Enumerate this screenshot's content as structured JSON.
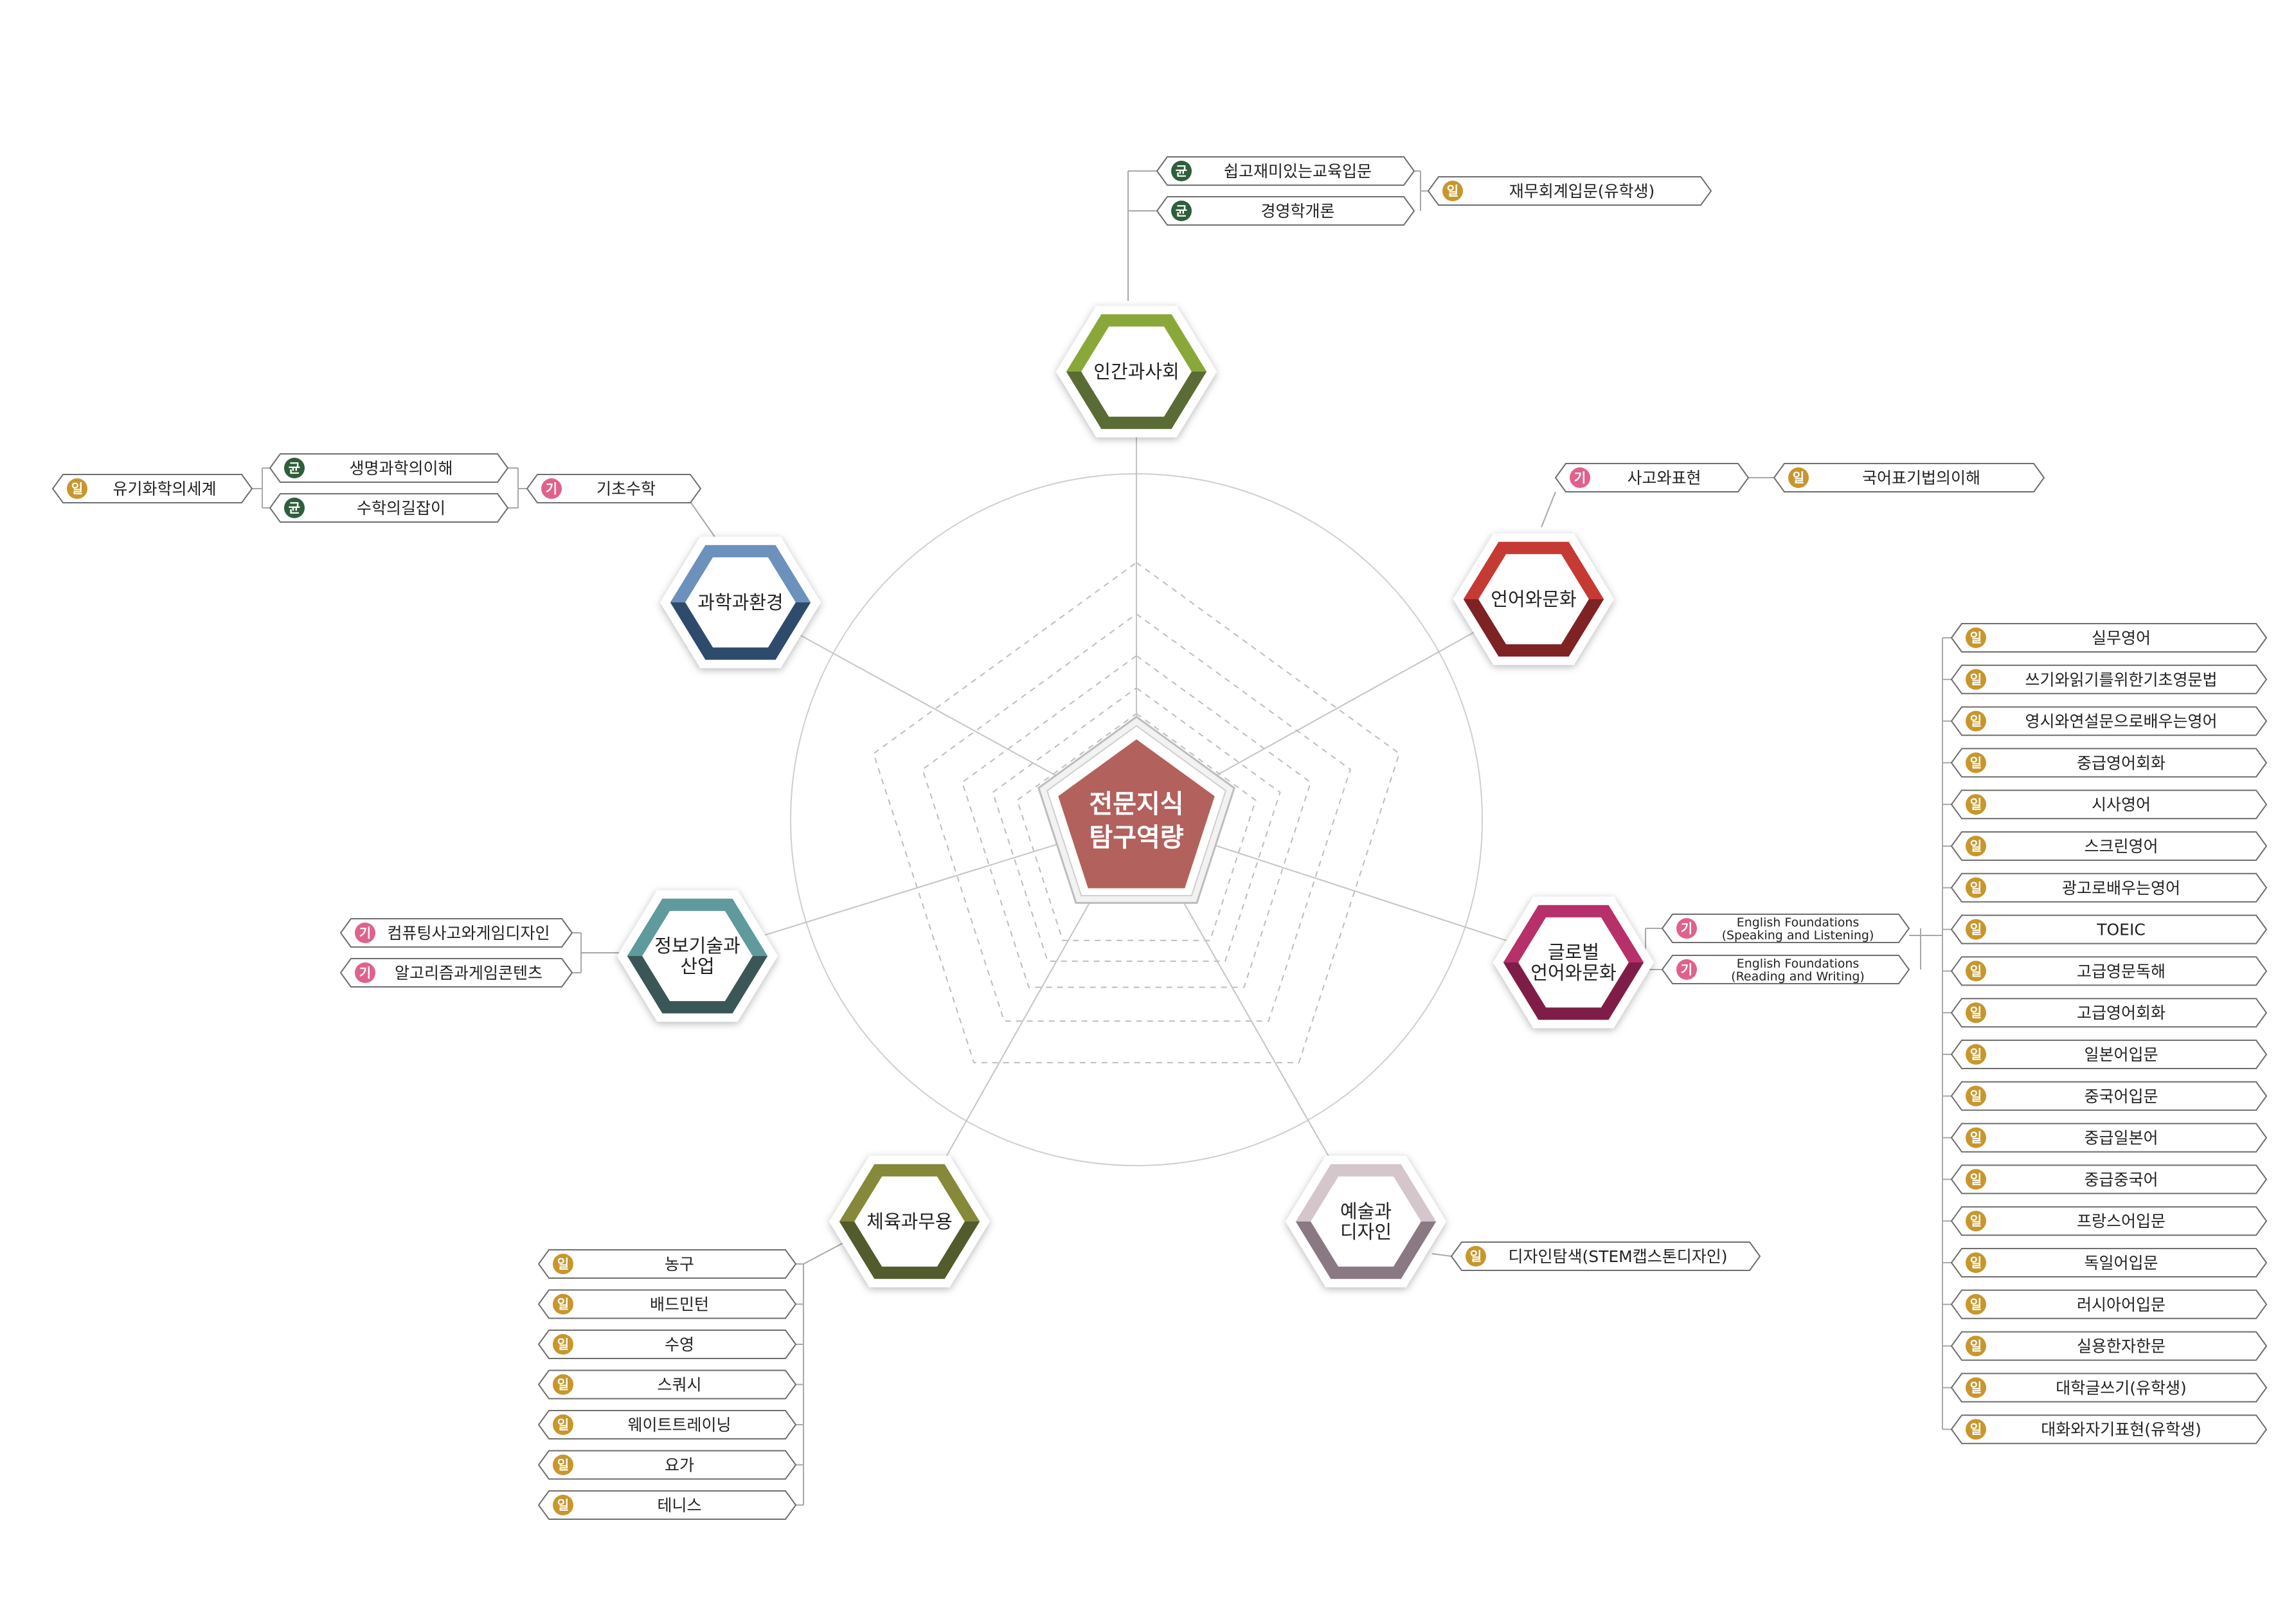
{
  "center": {
    "line1": "전문지식",
    "line2": "탐구역량",
    "color": "#b2615c"
  },
  "badge_colors": {
    "균": "#2f5e3a",
    "일": "#c8962c",
    "기": "#e0628a"
  },
  "hubs": [
    {
      "id": "human",
      "lines": [
        "인간과사회"
      ],
      "top": "#8aa83a",
      "bottom": "#5a6b35"
    },
    {
      "id": "lang",
      "lines": [
        "언어와문화"
      ],
      "top": "#c63a34",
      "bottom": "#7e2224"
    },
    {
      "id": "global",
      "lines": [
        "글로벌",
        "언어와문화"
      ],
      "top": "#b73069",
      "bottom": "#7e1e48"
    },
    {
      "id": "art",
      "lines": [
        "예술과",
        "디자인"
      ],
      "top": "#d4c6cb",
      "bottom": "#8a7882"
    },
    {
      "id": "sport",
      "lines": [
        "체육과무용"
      ],
      "top": "#86883a",
      "bottom": "#515b2c"
    },
    {
      "id": "it",
      "lines": [
        "정보기술과",
        "산업"
      ],
      "top": "#5f9a9c",
      "bottom": "#3b5657"
    },
    {
      "id": "sci",
      "lines": [
        "과학과환경"
      ],
      "top": "#6d91bd",
      "bottom": "#2f4b6c"
    }
  ],
  "courses": {
    "human_a": [
      {
        "badge": "균",
        "label": "쉽고재미있는교육입문"
      },
      {
        "badge": "균",
        "label": "경영학개론"
      }
    ],
    "human_b": [
      {
        "badge": "일",
        "label": "재무회계입문(유학생)"
      }
    ],
    "lang_a": [
      {
        "badge": "기",
        "label": "사고와표현"
      }
    ],
    "lang_b": [
      {
        "badge": "일",
        "label": "국어표기법의이해"
      }
    ],
    "global_a": [
      {
        "badge": "기",
        "label": "English Foundations",
        "sub": "(Speaking and Listening)"
      },
      {
        "badge": "기",
        "label": "English Foundations",
        "sub": "(Reading and Writing)"
      }
    ],
    "global_b": [
      {
        "badge": "일",
        "label": "실무영어"
      },
      {
        "badge": "일",
        "label": "쓰기와읽기를위한기초영문법"
      },
      {
        "badge": "일",
        "label": "영시와연설문으로배우는영어"
      },
      {
        "badge": "일",
        "label": "중급영어회화"
      },
      {
        "badge": "일",
        "label": "시사영어"
      },
      {
        "badge": "일",
        "label": "스크린영어"
      },
      {
        "badge": "일",
        "label": "광고로배우는영어"
      },
      {
        "badge": "일",
        "label": "TOEIC"
      },
      {
        "badge": "일",
        "label": "고급영문독해"
      },
      {
        "badge": "일",
        "label": "고급영어회화"
      },
      {
        "badge": "일",
        "label": "일본어입문"
      },
      {
        "badge": "일",
        "label": "중국어입문"
      },
      {
        "badge": "일",
        "label": "중급일본어"
      },
      {
        "badge": "일",
        "label": "중급중국어"
      },
      {
        "badge": "일",
        "label": "프랑스어입문"
      },
      {
        "badge": "일",
        "label": "독일어입문"
      },
      {
        "badge": "일",
        "label": "러시아어입문"
      },
      {
        "badge": "일",
        "label": "실용한자한문"
      },
      {
        "badge": "일",
        "label": "대학글쓰기(유학생)"
      },
      {
        "badge": "일",
        "label": "대화와자기표현(유학생)"
      }
    ],
    "art_a": [
      {
        "badge": "일",
        "label": "디자인탐색(STEM캡스톤디자인)"
      }
    ],
    "sport_a": [
      {
        "badge": "일",
        "label": "농구"
      },
      {
        "badge": "일",
        "label": "배드민턴"
      },
      {
        "badge": "일",
        "label": "수영"
      },
      {
        "badge": "일",
        "label": "스쿼시"
      },
      {
        "badge": "일",
        "label": "웨이트트레이닝"
      },
      {
        "badge": "일",
        "label": "요가"
      },
      {
        "badge": "일",
        "label": "테니스"
      }
    ],
    "it_a": [
      {
        "badge": "기",
        "label": "컴퓨팅사고와게임디자인"
      },
      {
        "badge": "기",
        "label": "알고리즘과게임콘텐츠"
      }
    ],
    "sci_a": [
      {
        "badge": "기",
        "label": "기초수학"
      }
    ],
    "sci_b": [
      {
        "badge": "균",
        "label": "생명과학의이해"
      },
      {
        "badge": "균",
        "label": "수학의길잡이"
      }
    ],
    "sci_c": [
      {
        "badge": "일",
        "label": "유기화학의세계"
      }
    ]
  }
}
